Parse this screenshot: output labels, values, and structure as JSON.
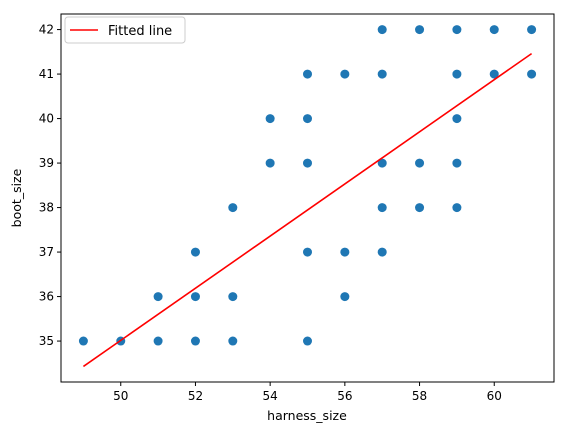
{
  "chart_data": {
    "type": "scatter",
    "xlabel": "harness_size",
    "ylabel": "boot_size",
    "xlim": [
      48.4,
      61.6
    ],
    "ylim": [
      34.08,
      42.35
    ],
    "xticks": [
      50,
      52,
      54,
      56,
      58,
      60
    ],
    "yticks": [
      35,
      36,
      37,
      38,
      39,
      40,
      41,
      42
    ],
    "grid": false,
    "legend": {
      "position": "top-left",
      "entries": [
        "Fitted line"
      ]
    },
    "colors": {
      "points": "#1f77b4",
      "fit_line": "#ff0000"
    },
    "series": [
      {
        "kind": "scatter",
        "points": [
          {
            "x": 49,
            "y": 35
          },
          {
            "x": 50,
            "y": 35
          },
          {
            "x": 51,
            "y": 35
          },
          {
            "x": 51,
            "y": 36
          },
          {
            "x": 52,
            "y": 35
          },
          {
            "x": 52,
            "y": 36
          },
          {
            "x": 52,
            "y": 37
          },
          {
            "x": 53,
            "y": 35
          },
          {
            "x": 53,
            "y": 36
          },
          {
            "x": 53,
            "y": 38
          },
          {
            "x": 54,
            "y": 39
          },
          {
            "x": 54,
            "y": 40
          },
          {
            "x": 55,
            "y": 35
          },
          {
            "x": 55,
            "y": 37
          },
          {
            "x": 55,
            "y": 39
          },
          {
            "x": 55,
            "y": 40
          },
          {
            "x": 55,
            "y": 41
          },
          {
            "x": 56,
            "y": 36
          },
          {
            "x": 56,
            "y": 37
          },
          {
            "x": 56,
            "y": 41
          },
          {
            "x": 57,
            "y": 37
          },
          {
            "x": 57,
            "y": 38
          },
          {
            "x": 57,
            "y": 39
          },
          {
            "x": 57,
            "y": 41
          },
          {
            "x": 57,
            "y": 42
          },
          {
            "x": 58,
            "y": 38
          },
          {
            "x": 58,
            "y": 39
          },
          {
            "x": 58,
            "y": 42
          },
          {
            "x": 59,
            "y": 38
          },
          {
            "x": 59,
            "y": 39
          },
          {
            "x": 59,
            "y": 40
          },
          {
            "x": 59,
            "y": 41
          },
          {
            "x": 59,
            "y": 42
          },
          {
            "x": 60,
            "y": 41
          },
          {
            "x": 60,
            "y": 42
          },
          {
            "x": 61,
            "y": 41
          },
          {
            "x": 61,
            "y": 42
          }
        ]
      },
      {
        "kind": "line",
        "name": "Fitted line",
        "points": [
          {
            "x": 49,
            "y": 34.43
          },
          {
            "x": 61,
            "y": 41.46
          }
        ]
      }
    ]
  }
}
